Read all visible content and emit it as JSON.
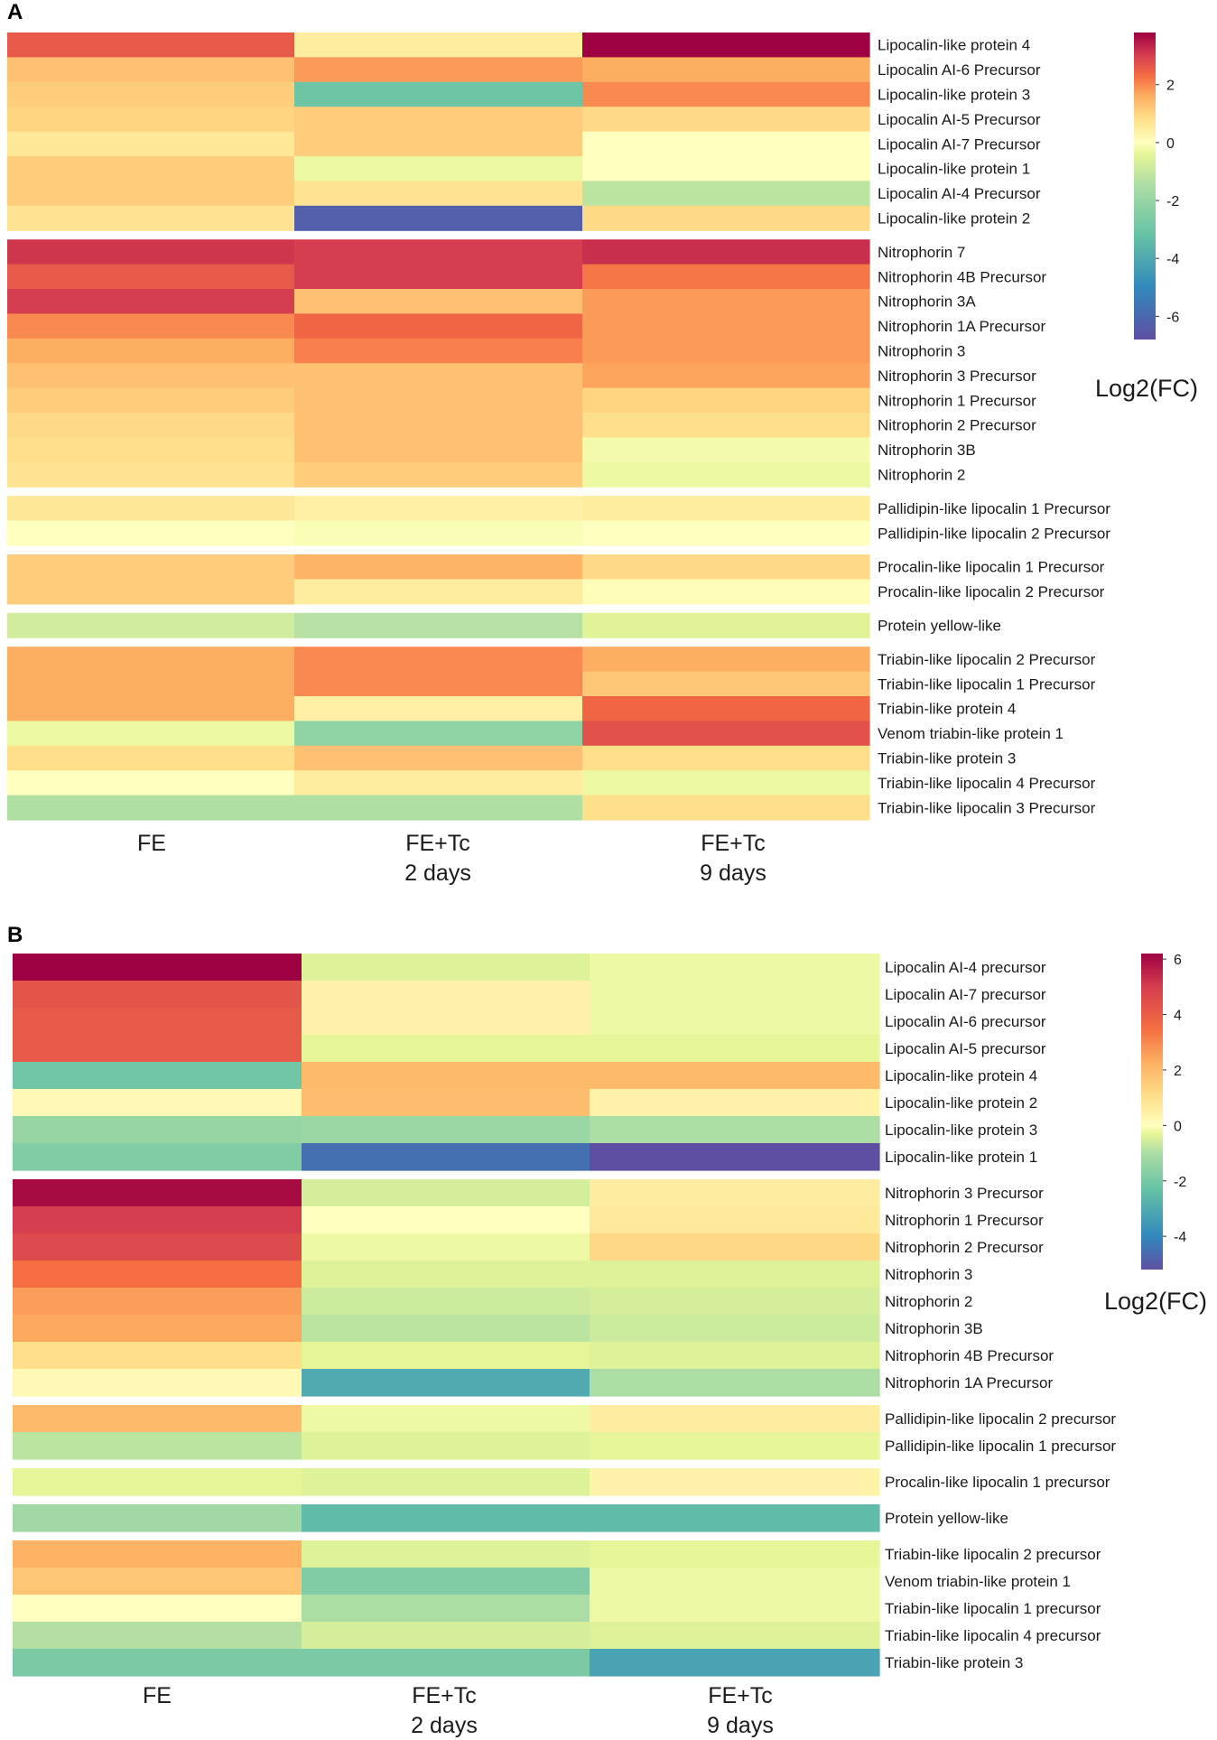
{
  "chart_data": [
    {
      "type": "heatmap",
      "panel": "A",
      "columns": [
        [
          "FE"
        ],
        [
          "FE+Tc",
          "2 days"
        ],
        [
          "FE+Tc",
          "9 days"
        ]
      ],
      "groups": [
        {
          "rows": [
            {
              "label": "Lipocalin-like protein 4",
              "values": [
                2.6,
                0.5,
                3.8
              ]
            },
            {
              "label": "Lipocalin AI-6 Precursor",
              "values": [
                1.3,
                1.8,
                1.6
              ]
            },
            {
              "label": "Lipocalin-like protein 3",
              "values": [
                1.1,
                -3.0,
                2.0
              ]
            },
            {
              "label": "Lipocalin AI-5 Precursor",
              "values": [
                1.0,
                1.1,
                0.9
              ]
            },
            {
              "label": "Lipocalin AI-7 Precursor",
              "values": [
                0.6,
                1.1,
                0.0
              ]
            },
            {
              "label": "Lipocalin-like protein 1",
              "values": [
                1.1,
                -0.3,
                0.0
              ]
            },
            {
              "label": "Lipocalin AI-4 Precursor",
              "values": [
                1.1,
                0.7,
                -1.2
              ]
            },
            {
              "label": "Lipocalin-like protein 2",
              "values": [
                0.7,
                -6.3,
                0.9
              ]
            }
          ]
        },
        {
          "rows": [
            {
              "label": "Nitrophorin 7",
              "values": [
                3.1,
                3.0,
                3.2
              ]
            },
            {
              "label": "Nitrophorin 4B Precursor",
              "values": [
                2.6,
                3.0,
                2.2
              ]
            },
            {
              "label": "Nitrophorin 3A",
              "values": [
                3.0,
                1.3,
                1.8
              ]
            },
            {
              "label": "Nitrophorin 1A Precursor",
              "values": [
                2.0,
                2.4,
                1.8
              ]
            },
            {
              "label": "Nitrophorin 3",
              "values": [
                1.6,
                2.1,
                1.8
              ]
            },
            {
              "label": "Nitrophorin 3 Precursor",
              "values": [
                1.3,
                1.3,
                1.7
              ]
            },
            {
              "label": "Nitrophorin 1 Precursor",
              "values": [
                1.1,
                1.3,
                1.0
              ]
            },
            {
              "label": "Nitrophorin 2 Precursor",
              "values": [
                0.9,
                1.3,
                0.8
              ]
            },
            {
              "label": "Nitrophorin 3B",
              "values": [
                0.8,
                1.3,
                -0.2
              ]
            },
            {
              "label": "Nitrophorin 2",
              "values": [
                0.7,
                1.1,
                -0.3
              ]
            }
          ]
        },
        {
          "rows": [
            {
              "label": "Pallidipin-like lipocalin 1 Precursor",
              "values": [
                0.6,
                0.4,
                0.5
              ]
            },
            {
              "label": "Pallidipin-like lipocalin 2 Precursor",
              "values": [
                0.0,
                -0.1,
                0.0
              ]
            }
          ]
        },
        {
          "rows": [
            {
              "label": "Procalin-like lipocalin 1 Precursor",
              "values": [
                1.1,
                1.5,
                0.9
              ]
            },
            {
              "label": "Procalin-like lipocalin 2 Precursor",
              "values": [
                1.1,
                0.5,
                0.1
              ]
            }
          ]
        },
        {
          "rows": [
            {
              "label": "Protein yellow-like",
              "values": [
                -0.8,
                -1.3,
                -0.5
              ]
            }
          ]
        },
        {
          "rows": [
            {
              "label": "Triabin-like lipocalin 2 Precursor",
              "values": [
                1.6,
                2.0,
                1.6
              ]
            },
            {
              "label": "Triabin-like lipocalin 1 Precursor",
              "values": [
                1.6,
                2.0,
                1.2
              ]
            },
            {
              "label": "Triabin-like protein 4",
              "values": [
                1.6,
                0.4,
                2.4
              ]
            },
            {
              "label": "Venom triabin-like protein 1",
              "values": [
                -0.3,
                -2.2,
                2.7
              ]
            },
            {
              "label": "Triabin-like protein 3",
              "values": [
                0.8,
                1.3,
                0.8
              ]
            },
            {
              "label": "Triabin-like lipocalin 4 Precursor",
              "values": [
                0.0,
                0.5,
                -0.3
              ]
            },
            {
              "label": "Triabin-like lipocalin 3 Precursor",
              "values": [
                -1.4,
                -1.4,
                0.8
              ]
            }
          ]
        }
      ],
      "color_scale": {
        "min": -6.8,
        "max": 3.8,
        "stops": [
          [
            -6.8,
            "#5e4fa2"
          ],
          [
            -5.0,
            "#3288bd"
          ],
          [
            -3.2,
            "#66c2a5"
          ],
          [
            -1.5,
            "#abdda4"
          ],
          [
            -0.4,
            "#e6f598"
          ],
          [
            0.0,
            "#ffffbf"
          ],
          [
            0.8,
            "#fee08b"
          ],
          [
            1.6,
            "#fdae61"
          ],
          [
            2.3,
            "#f46d43"
          ],
          [
            3.0,
            "#d53e4f"
          ],
          [
            3.8,
            "#9e0142"
          ]
        ]
      },
      "colorbar_ticks": [
        2,
        0,
        -2,
        -4,
        -6
      ],
      "colorbar_tick_labels": [
        "2",
        "0",
        "-2",
        "-4",
        "-6"
      ],
      "colorbar_title": "Log2(FC)"
    },
    {
      "type": "heatmap",
      "panel": "B",
      "columns": [
        [
          "FE"
        ],
        [
          "FE+Tc",
          "2 days"
        ],
        [
          "FE+Tc",
          "9 days"
        ]
      ],
      "groups": [
        {
          "rows": [
            {
              "label": "Lipocalin AI-4 precursor",
              "values": [
                6.2,
                -0.4,
                -0.2
              ]
            },
            {
              "label": "Lipocalin AI-7 precursor",
              "values": [
                4.3,
                0.4,
                -0.2
              ]
            },
            {
              "label": "Lipocalin AI-6 precursor",
              "values": [
                4.1,
                0.4,
                -0.2
              ]
            },
            {
              "label": "Lipocalin AI-5 precursor",
              "values": [
                4.1,
                -0.3,
                -0.3
              ]
            },
            {
              "label": "Lipocalin-like protein 4",
              "values": [
                -2.1,
                2.0,
                2.0
              ]
            },
            {
              "label": "Lipocalin-like protein 2",
              "values": [
                0.2,
                1.9,
                0.4
              ]
            },
            {
              "label": "Lipocalin-like protein 3",
              "values": [
                -1.4,
                -1.3,
                -1.0
              ]
            },
            {
              "label": "Lipocalin-like protein 1",
              "values": [
                -1.8,
                -4.5,
                -5.2
              ]
            }
          ]
        },
        {
          "rows": [
            {
              "label": "Nitrophorin 3 Precursor",
              "values": [
                6.0,
                -0.5,
                0.6
              ]
            },
            {
              "label": "Nitrophorin 1 Precursor",
              "values": [
                5.0,
                0.0,
                0.7
              ]
            },
            {
              "label": "Nitrophorin 2 Precursor",
              "values": [
                4.6,
                -0.2,
                1.2
              ]
            },
            {
              "label": "Nitrophorin 3",
              "values": [
                3.5,
                -0.4,
                -0.4
              ]
            },
            {
              "label": "Nitrophorin 2",
              "values": [
                2.6,
                -0.6,
                -0.5
              ]
            },
            {
              "label": "Nitrophorin 3B",
              "values": [
                2.4,
                -0.8,
                -0.6
              ]
            },
            {
              "label": "Nitrophorin 4B Precursor",
              "values": [
                1.0,
                -0.3,
                -0.4
              ]
            },
            {
              "label": "Nitrophorin 1A Precursor",
              "values": [
                0.2,
                -3.0,
                -1.0
              ]
            }
          ]
        },
        {
          "rows": [
            {
              "label": "Pallidipin-like lipocalin 2 precursor",
              "values": [
                2.0,
                -0.2,
                0.6
              ]
            },
            {
              "label": "Pallidipin-like lipocalin 1 precursor",
              "values": [
                -0.8,
                -0.4,
                -0.3
              ]
            }
          ]
        },
        {
          "rows": [
            {
              "label": "Procalin-like lipocalin 1 precursor",
              "values": [
                -0.3,
                -0.4,
                0.4
              ]
            }
          ]
        },
        {
          "rows": [
            {
              "label": "Protein yellow-like",
              "values": [
                -1.2,
                -2.5,
                -2.5
              ]
            }
          ]
        },
        {
          "rows": [
            {
              "label": "Triabin-like lipocalin 2 precursor",
              "values": [
                2.2,
                -0.4,
                -0.3
              ]
            },
            {
              "label": "Venom triabin-like protein 1",
              "values": [
                1.7,
                -1.8,
                -0.2
              ]
            },
            {
              "label": "Triabin-like lipocalin 1 precursor",
              "values": [
                0.0,
                -1.0,
                -0.2
              ]
            },
            {
              "label": "Triabin-like lipocalin 4 precursor",
              "values": [
                -0.9,
                -0.5,
                -0.4
              ]
            },
            {
              "label": "Triabin-like protein 3",
              "values": [
                -1.9,
                -1.9,
                -3.2
              ]
            }
          ]
        }
      ],
      "color_scale": {
        "min": -5.2,
        "max": 6.2,
        "stops": [
          [
            -5.2,
            "#5e4fa2"
          ],
          [
            -4.0,
            "#3288bd"
          ],
          [
            -2.3,
            "#66c2a5"
          ],
          [
            -1.0,
            "#abdda4"
          ],
          [
            -0.3,
            "#e6f598"
          ],
          [
            0.0,
            "#ffffbf"
          ],
          [
            1.0,
            "#fee08b"
          ],
          [
            2.3,
            "#fdae61"
          ],
          [
            3.5,
            "#f46d43"
          ],
          [
            5.0,
            "#d53e4f"
          ],
          [
            6.2,
            "#9e0142"
          ]
        ]
      },
      "colorbar_ticks": [
        6,
        4,
        2,
        0,
        -2,
        -4
      ],
      "colorbar_tick_labels": [
        "6",
        "4",
        "2",
        "0",
        "-2",
        "-4"
      ],
      "colorbar_title": "Log2(FC)"
    }
  ],
  "panel_labels": [
    "A",
    "B"
  ]
}
